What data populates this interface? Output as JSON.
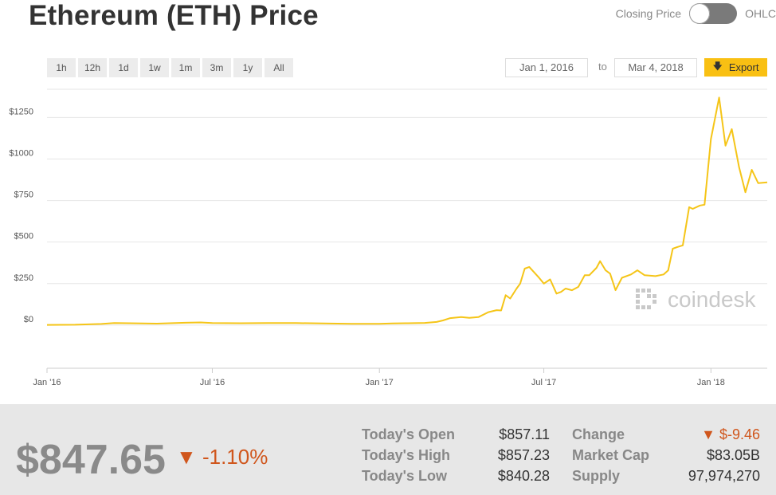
{
  "header": {
    "title": "Ethereum (ETH) Price",
    "toggle_left": "Closing Price",
    "toggle_right": "OHLC"
  },
  "controls": {
    "ranges": [
      "1h",
      "12h",
      "1d",
      "1w",
      "1m",
      "3m",
      "1y",
      "All"
    ],
    "date_from": "Jan 1, 2016",
    "date_sep": "to",
    "date_to": "Mar 4, 2018",
    "export_label": "Export"
  },
  "watermark": "coindesk",
  "chart_data": {
    "type": "line",
    "y_ticks": [
      "$0",
      "$250",
      "$500",
      "$750",
      "$1000",
      "$1250"
    ],
    "y_tick_values": [
      0,
      250,
      500,
      750,
      1000,
      1250
    ],
    "x_ticks": [
      "Jan '16",
      "Jul '16",
      "Jan '17",
      "Jul '17",
      "Jan '18"
    ],
    "x_tick_dates": [
      "2016-01-01",
      "2016-07-01",
      "2017-01-01",
      "2017-07-01",
      "2018-01-01"
    ],
    "ylim": [
      -260,
      1420
    ],
    "xlim": [
      "2016-01-01",
      "2018-03-04"
    ],
    "grid": true,
    "color": "#f5c518",
    "series": [
      {
        "points": [
          [
            "2016-01-01",
            1
          ],
          [
            "2016-02-01",
            2
          ],
          [
            "2016-03-01",
            7
          ],
          [
            "2016-03-15",
            12
          ],
          [
            "2016-04-01",
            11
          ],
          [
            "2016-05-01",
            9
          ],
          [
            "2016-06-01",
            14
          ],
          [
            "2016-06-18",
            16
          ],
          [
            "2016-07-01",
            12
          ],
          [
            "2016-08-01",
            11
          ],
          [
            "2016-09-01",
            12
          ],
          [
            "2016-10-01",
            12
          ],
          [
            "2016-11-01",
            10
          ],
          [
            "2016-12-01",
            8
          ],
          [
            "2017-01-01",
            8
          ],
          [
            "2017-01-15",
            10
          ],
          [
            "2017-02-01",
            11
          ],
          [
            "2017-02-20",
            13
          ],
          [
            "2017-03-05",
            19
          ],
          [
            "2017-03-12",
            28
          ],
          [
            "2017-03-20",
            42
          ],
          [
            "2017-04-01",
            48
          ],
          [
            "2017-04-10",
            44
          ],
          [
            "2017-04-20",
            48
          ],
          [
            "2017-05-01",
            78
          ],
          [
            "2017-05-10",
            90
          ],
          [
            "2017-05-15",
            88
          ],
          [
            "2017-05-20",
            180
          ],
          [
            "2017-05-25",
            160
          ],
          [
            "2017-06-01",
            220
          ],
          [
            "2017-06-05",
            250
          ],
          [
            "2017-06-10",
            340
          ],
          [
            "2017-06-15",
            350
          ],
          [
            "2017-06-20",
            320
          ],
          [
            "2017-06-25",
            290
          ],
          [
            "2017-07-01",
            250
          ],
          [
            "2017-07-08",
            275
          ],
          [
            "2017-07-15",
            190
          ],
          [
            "2017-07-20",
            200
          ],
          [
            "2017-07-25",
            220
          ],
          [
            "2017-08-01",
            210
          ],
          [
            "2017-08-08",
            230
          ],
          [
            "2017-08-15",
            300
          ],
          [
            "2017-08-20",
            300
          ],
          [
            "2017-08-28",
            345
          ],
          [
            "2017-09-01",
            385
          ],
          [
            "2017-09-07",
            330
          ],
          [
            "2017-09-12",
            310
          ],
          [
            "2017-09-18",
            210
          ],
          [
            "2017-09-25",
            285
          ],
          [
            "2017-10-05",
            305
          ],
          [
            "2017-10-12",
            330
          ],
          [
            "2017-10-20",
            300
          ],
          [
            "2017-11-01",
            295
          ],
          [
            "2017-11-10",
            305
          ],
          [
            "2017-11-15",
            330
          ],
          [
            "2017-11-20",
            460
          ],
          [
            "2017-11-25",
            470
          ],
          [
            "2017-12-01",
            480
          ],
          [
            "2017-12-08",
            710
          ],
          [
            "2017-12-12",
            700
          ],
          [
            "2017-12-20",
            720
          ],
          [
            "2017-12-25",
            725
          ],
          [
            "2018-01-01",
            1120
          ],
          [
            "2018-01-10",
            1370
          ],
          [
            "2018-01-17",
            1080
          ],
          [
            "2018-01-24",
            1180
          ],
          [
            "2018-02-01",
            950
          ],
          [
            "2018-02-08",
            800
          ],
          [
            "2018-02-15",
            935
          ],
          [
            "2018-02-22",
            855
          ],
          [
            "2018-03-04",
            860
          ]
        ]
      }
    ]
  },
  "footer": {
    "price": "$847.65",
    "change_pct": "▼ -1.10%",
    "stats_left": [
      {
        "label": "Today's Open",
        "value": "$857.11"
      },
      {
        "label": "Today's High",
        "value": "$857.23"
      },
      {
        "label": "Today's Low",
        "value": "$840.28"
      }
    ],
    "stats_right": [
      {
        "label": "Change",
        "value": "▼ $-9.46"
      },
      {
        "label": "Market Cap",
        "value": "$83.05B"
      },
      {
        "label": "Supply",
        "value": "97,974,270"
      }
    ]
  }
}
